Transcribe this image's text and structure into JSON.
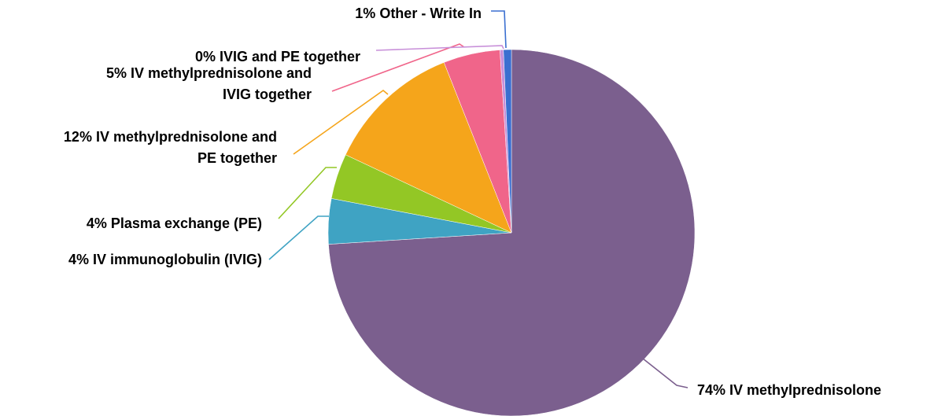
{
  "chart_data": {
    "type": "pie",
    "title": "",
    "start_angle_deg": 0,
    "direction": "clockwise",
    "legend": "none",
    "slices": [
      {
        "label": "IV methylprednisolone",
        "value": 74,
        "display_lines": [
          "74% IV methylprednisolone"
        ],
        "color": "#7B5F8E"
      },
      {
        "label": "IV immunoglobulin (IVIG)",
        "value": 4,
        "display_lines": [
          "4% IV immunoglobulin (IVIG)"
        ],
        "color": "#3FA3C3"
      },
      {
        "label": "Plasma exchange (PE)",
        "value": 4,
        "display_lines": [
          "4% Plasma exchange (PE)"
        ],
        "color": "#93C725"
      },
      {
        "label": "IV methylprednisolone and PE together",
        "value": 12,
        "display_lines": [
          "12% IV methylprednisolone and",
          "PE together"
        ],
        "color": "#F5A51B"
      },
      {
        "label": "IV methylprednisolone and IVIG together",
        "value": 5,
        "display_lines": [
          "5% IV methylprednisolone and",
          "IVIG together"
        ],
        "color": "#F0658A"
      },
      {
        "label": "IVIG and PE together",
        "value": 0.3,
        "display_lines": [
          "0% IVIG and PE together"
        ],
        "color": "#C890D9"
      },
      {
        "label": "Other - Write In",
        "value": 0.7,
        "display_lines": [
          "1% Other - Write In"
        ],
        "color": "#3A6FD0"
      }
    ]
  }
}
